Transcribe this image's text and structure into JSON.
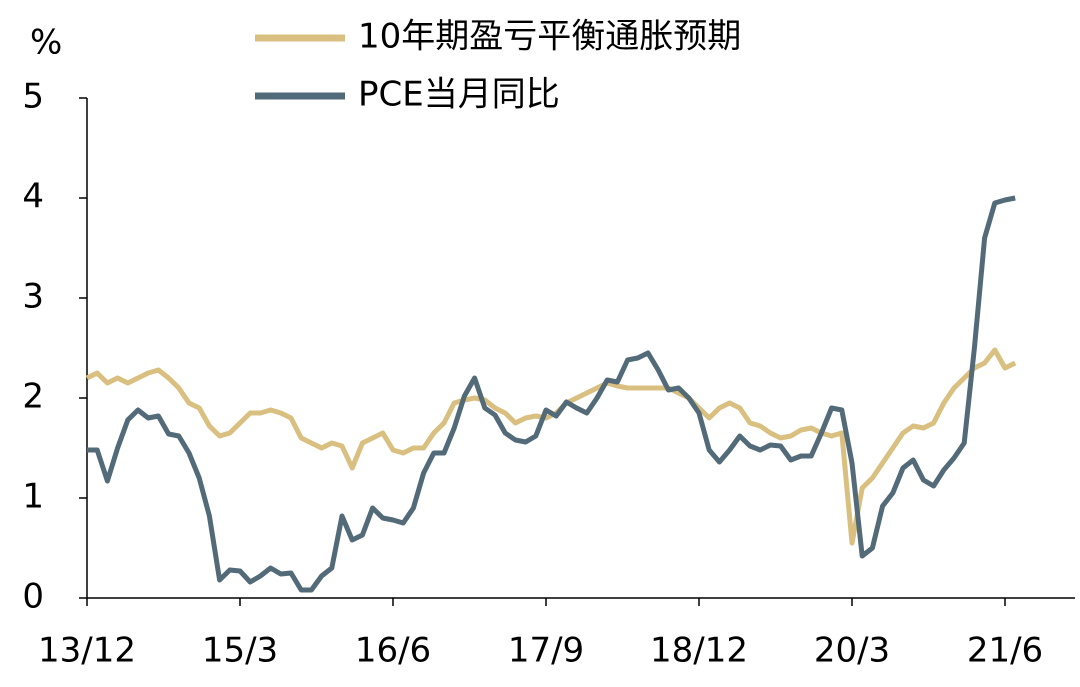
{
  "chart_data": {
    "type": "line",
    "y_label": "%",
    "categories": [
      "13/12",
      null,
      null,
      null,
      null,
      null,
      null,
      null,
      null,
      null,
      null,
      null,
      null,
      null,
      null,
      "15/3",
      null,
      null,
      null,
      null,
      null,
      null,
      null,
      null,
      null,
      null,
      null,
      null,
      null,
      null,
      "16/6",
      null,
      null,
      null,
      null,
      null,
      null,
      null,
      null,
      null,
      null,
      null,
      null,
      null,
      null,
      "17/9",
      null,
      null,
      null,
      null,
      null,
      null,
      null,
      null,
      null,
      null,
      null,
      null,
      null,
      null,
      "18/12",
      null,
      null,
      null,
      null,
      null,
      null,
      null,
      null,
      null,
      null,
      null,
      null,
      null,
      null,
      "20/3",
      null,
      null,
      null,
      null,
      null,
      null,
      null,
      null,
      null,
      null,
      null,
      null,
      null,
      null,
      "21/6",
      null
    ],
    "series": [
      {
        "name": "10年期盈亏平衡通胀预期",
        "color": "#d9c080",
        "values": [
          2.2,
          2.25,
          2.15,
          2.2,
          2.15,
          2.2,
          2.25,
          2.28,
          2.2,
          2.1,
          1.95,
          1.9,
          1.72,
          1.62,
          1.65,
          1.75,
          1.85,
          1.85,
          1.88,
          1.85,
          1.8,
          1.6,
          1.55,
          1.5,
          1.55,
          1.52,
          1.3,
          1.55,
          1.6,
          1.65,
          1.48,
          1.45,
          1.5,
          1.5,
          1.65,
          1.75,
          1.95,
          1.98,
          2.0,
          1.98,
          1.9,
          1.85,
          1.75,
          1.8,
          1.82,
          1.8,
          1.85,
          1.95,
          2.0,
          2.05,
          2.1,
          2.15,
          2.12,
          2.1,
          2.1,
          2.1,
          2.1,
          2.1,
          2.05,
          2.0,
          1.9,
          1.8,
          1.9,
          1.95,
          1.9,
          1.75,
          1.72,
          1.65,
          1.6,
          1.62,
          1.68,
          1.7,
          1.65,
          1.62,
          1.65,
          0.55,
          1.1,
          1.2,
          1.35,
          1.5,
          1.65,
          1.72,
          1.7,
          1.75,
          1.95,
          2.1,
          2.2,
          2.3,
          2.35,
          2.48,
          2.3,
          2.35
        ]
      },
      {
        "name": "PCE当月同比",
        "color": "#536a79",
        "values": [
          1.48,
          1.48,
          1.17,
          1.5,
          1.78,
          1.88,
          1.8,
          1.82,
          1.64,
          1.62,
          1.45,
          1.2,
          0.82,
          0.18,
          0.28,
          0.27,
          0.16,
          0.22,
          0.3,
          0.24,
          0.25,
          0.08,
          0.08,
          0.22,
          0.3,
          0.82,
          0.58,
          0.63,
          0.9,
          0.8,
          0.78,
          0.75,
          0.9,
          1.25,
          1.45,
          1.45,
          1.7,
          2.02,
          2.2,
          1.9,
          1.83,
          1.65,
          1.58,
          1.56,
          1.62,
          1.88,
          1.82,
          1.96,
          1.9,
          1.85,
          2.0,
          2.18,
          2.16,
          2.38,
          2.4,
          2.45,
          2.28,
          2.08,
          2.1,
          2.0,
          1.85,
          1.48,
          1.36,
          1.48,
          1.62,
          1.52,
          1.48,
          1.53,
          1.52,
          1.38,
          1.42,
          1.42,
          1.65,
          1.9,
          1.88,
          1.35,
          0.42,
          0.5,
          0.92,
          1.05,
          1.3,
          1.38,
          1.18,
          1.12,
          1.28,
          1.4,
          1.55,
          2.5,
          3.6,
          3.95,
          3.98,
          4.0
        ]
      }
    ],
    "ylim": [
      0,
      5
    ],
    "yticks": [
      0,
      1,
      2,
      3,
      4,
      5
    ],
    "grid": false
  }
}
